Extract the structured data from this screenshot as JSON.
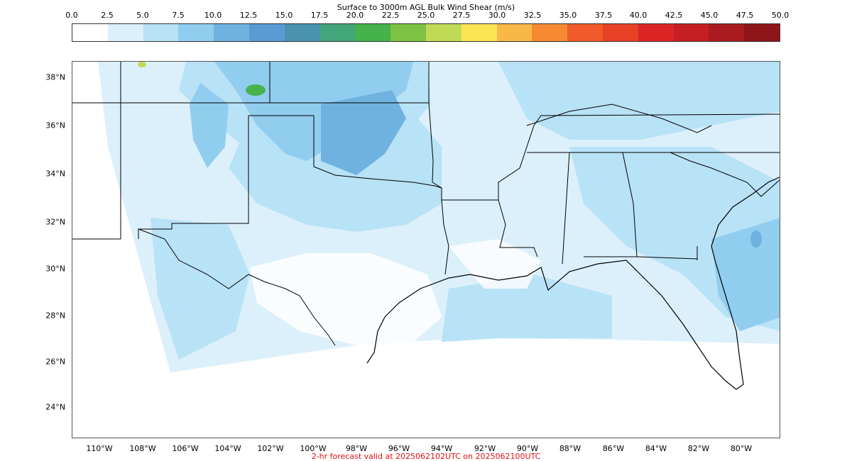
{
  "title": "Surface to 3000m AGL Bulk Wind Shear (m/s)",
  "footer": "2-hr forecast valid at 2025062102UTC on 2025062100UTC",
  "colorbar": {
    "ticks": [
      "0.0",
      "2.5",
      "5.0",
      "7.5",
      "10.0",
      "12.5",
      "15.0",
      "17.5",
      "20.0",
      "22.5",
      "25.0",
      "27.5",
      "30.0",
      "32.5",
      "35.0",
      "37.5",
      "40.0",
      "42.5",
      "45.0",
      "47.5",
      "50.0"
    ],
    "colors": [
      "#ffffff",
      "#dcf0fb",
      "#b8e2f6",
      "#91cdef",
      "#6fb2e0",
      "#5a9bd5",
      "#4893b0",
      "#43a57a",
      "#45b24c",
      "#7dc242",
      "#c2d955",
      "#fbe554",
      "#f9b747",
      "#f58a33",
      "#f15a2a",
      "#e84126",
      "#dc2626",
      "#c51f24",
      "#a91b1f",
      "#8e1619"
    ]
  },
  "lat_labels": [
    "38°N",
    "36°N",
    "34°N",
    "32°N",
    "30°N",
    "28°N",
    "26°N",
    "24°N"
  ],
  "lon_labels": [
    "110°W",
    "108°W",
    "106°W",
    "104°W",
    "102°W",
    "100°W",
    "98°W",
    "96°W",
    "94°W",
    "92°W",
    "90°W",
    "88°W",
    "86°W",
    "84°W",
    "82°W",
    "80°W"
  ]
}
